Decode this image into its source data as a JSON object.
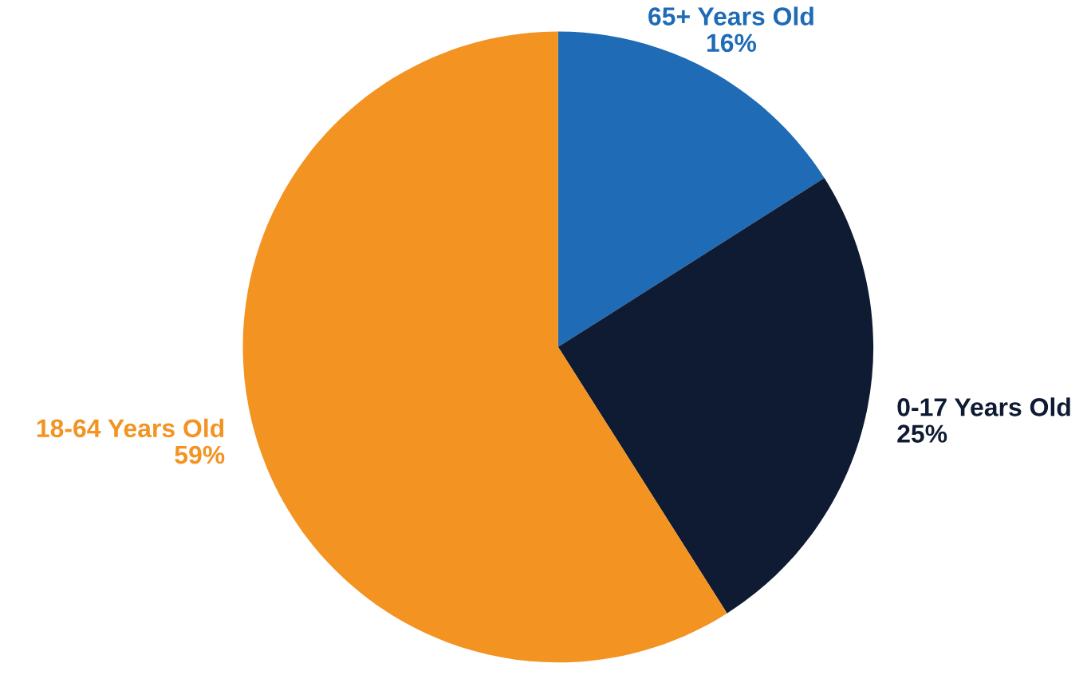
{
  "chart_data": {
    "type": "pie",
    "categories": [
      "65+ Years Old",
      "0-17 Years Old",
      "18-64 Years Old"
    ],
    "values": [
      16,
      25,
      59
    ],
    "colors": [
      "#1f6bb5",
      "#0f1b33",
      "#f39322"
    ],
    "value_labels": [
      "16%",
      "25%",
      "59%"
    ]
  }
}
